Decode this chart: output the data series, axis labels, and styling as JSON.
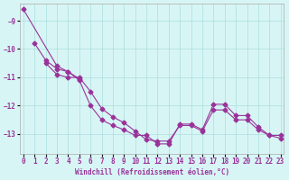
{
  "title": "",
  "xlabel": "Windchill (Refroidissement éolien,°C)",
  "ylabel": "",
  "bg_color": "#d8f5f5",
  "grid_color": "#aadddd",
  "line_color": "#993399",
  "xlim": [
    -0.3,
    23.3
  ],
  "ylim": [
    -13.7,
    -8.4
  ],
  "xticks": [
    0,
    1,
    2,
    3,
    4,
    5,
    6,
    7,
    8,
    9,
    10,
    11,
    12,
    13,
    14,
    15,
    16,
    17,
    18,
    19,
    20,
    21,
    22,
    23
  ],
  "yticks": [
    -13,
    -12,
    -11,
    -10,
    -9
  ],
  "line1_x": [
    1,
    2,
    3,
    4,
    5,
    6,
    7,
    8,
    9,
    10,
    11,
    12,
    13,
    14,
    15,
    16,
    17,
    18,
    19,
    20,
    21,
    22,
    23
  ],
  "line1_y": [
    -9.8,
    -10.4,
    -10.7,
    -10.8,
    -11.1,
    -12.0,
    -12.5,
    -12.7,
    -12.85,
    -13.05,
    -13.05,
    -13.35,
    -13.35,
    -12.65,
    -12.65,
    -12.85,
    -11.95,
    -11.95,
    -12.35,
    -12.35,
    -12.75,
    -13.05,
    -13.05
  ],
  "line2_x": [
    0,
    3,
    4,
    5
  ],
  "line2_y": [
    -8.6,
    -10.6,
    -10.8,
    -11.05
  ],
  "line3_x": [
    2,
    3,
    4,
    5,
    6,
    7,
    8,
    9,
    10,
    11,
    12,
    13,
    14,
    15,
    16,
    17,
    18,
    19,
    20,
    21,
    22,
    23
  ],
  "line3_y": [
    -10.5,
    -10.9,
    -11.0,
    -11.0,
    -11.5,
    -12.1,
    -12.4,
    -12.6,
    -12.9,
    -13.2,
    -13.25,
    -13.25,
    -12.7,
    -12.7,
    -12.9,
    -12.15,
    -12.15,
    -12.5,
    -12.5,
    -12.85,
    -13.05,
    -13.15
  ]
}
